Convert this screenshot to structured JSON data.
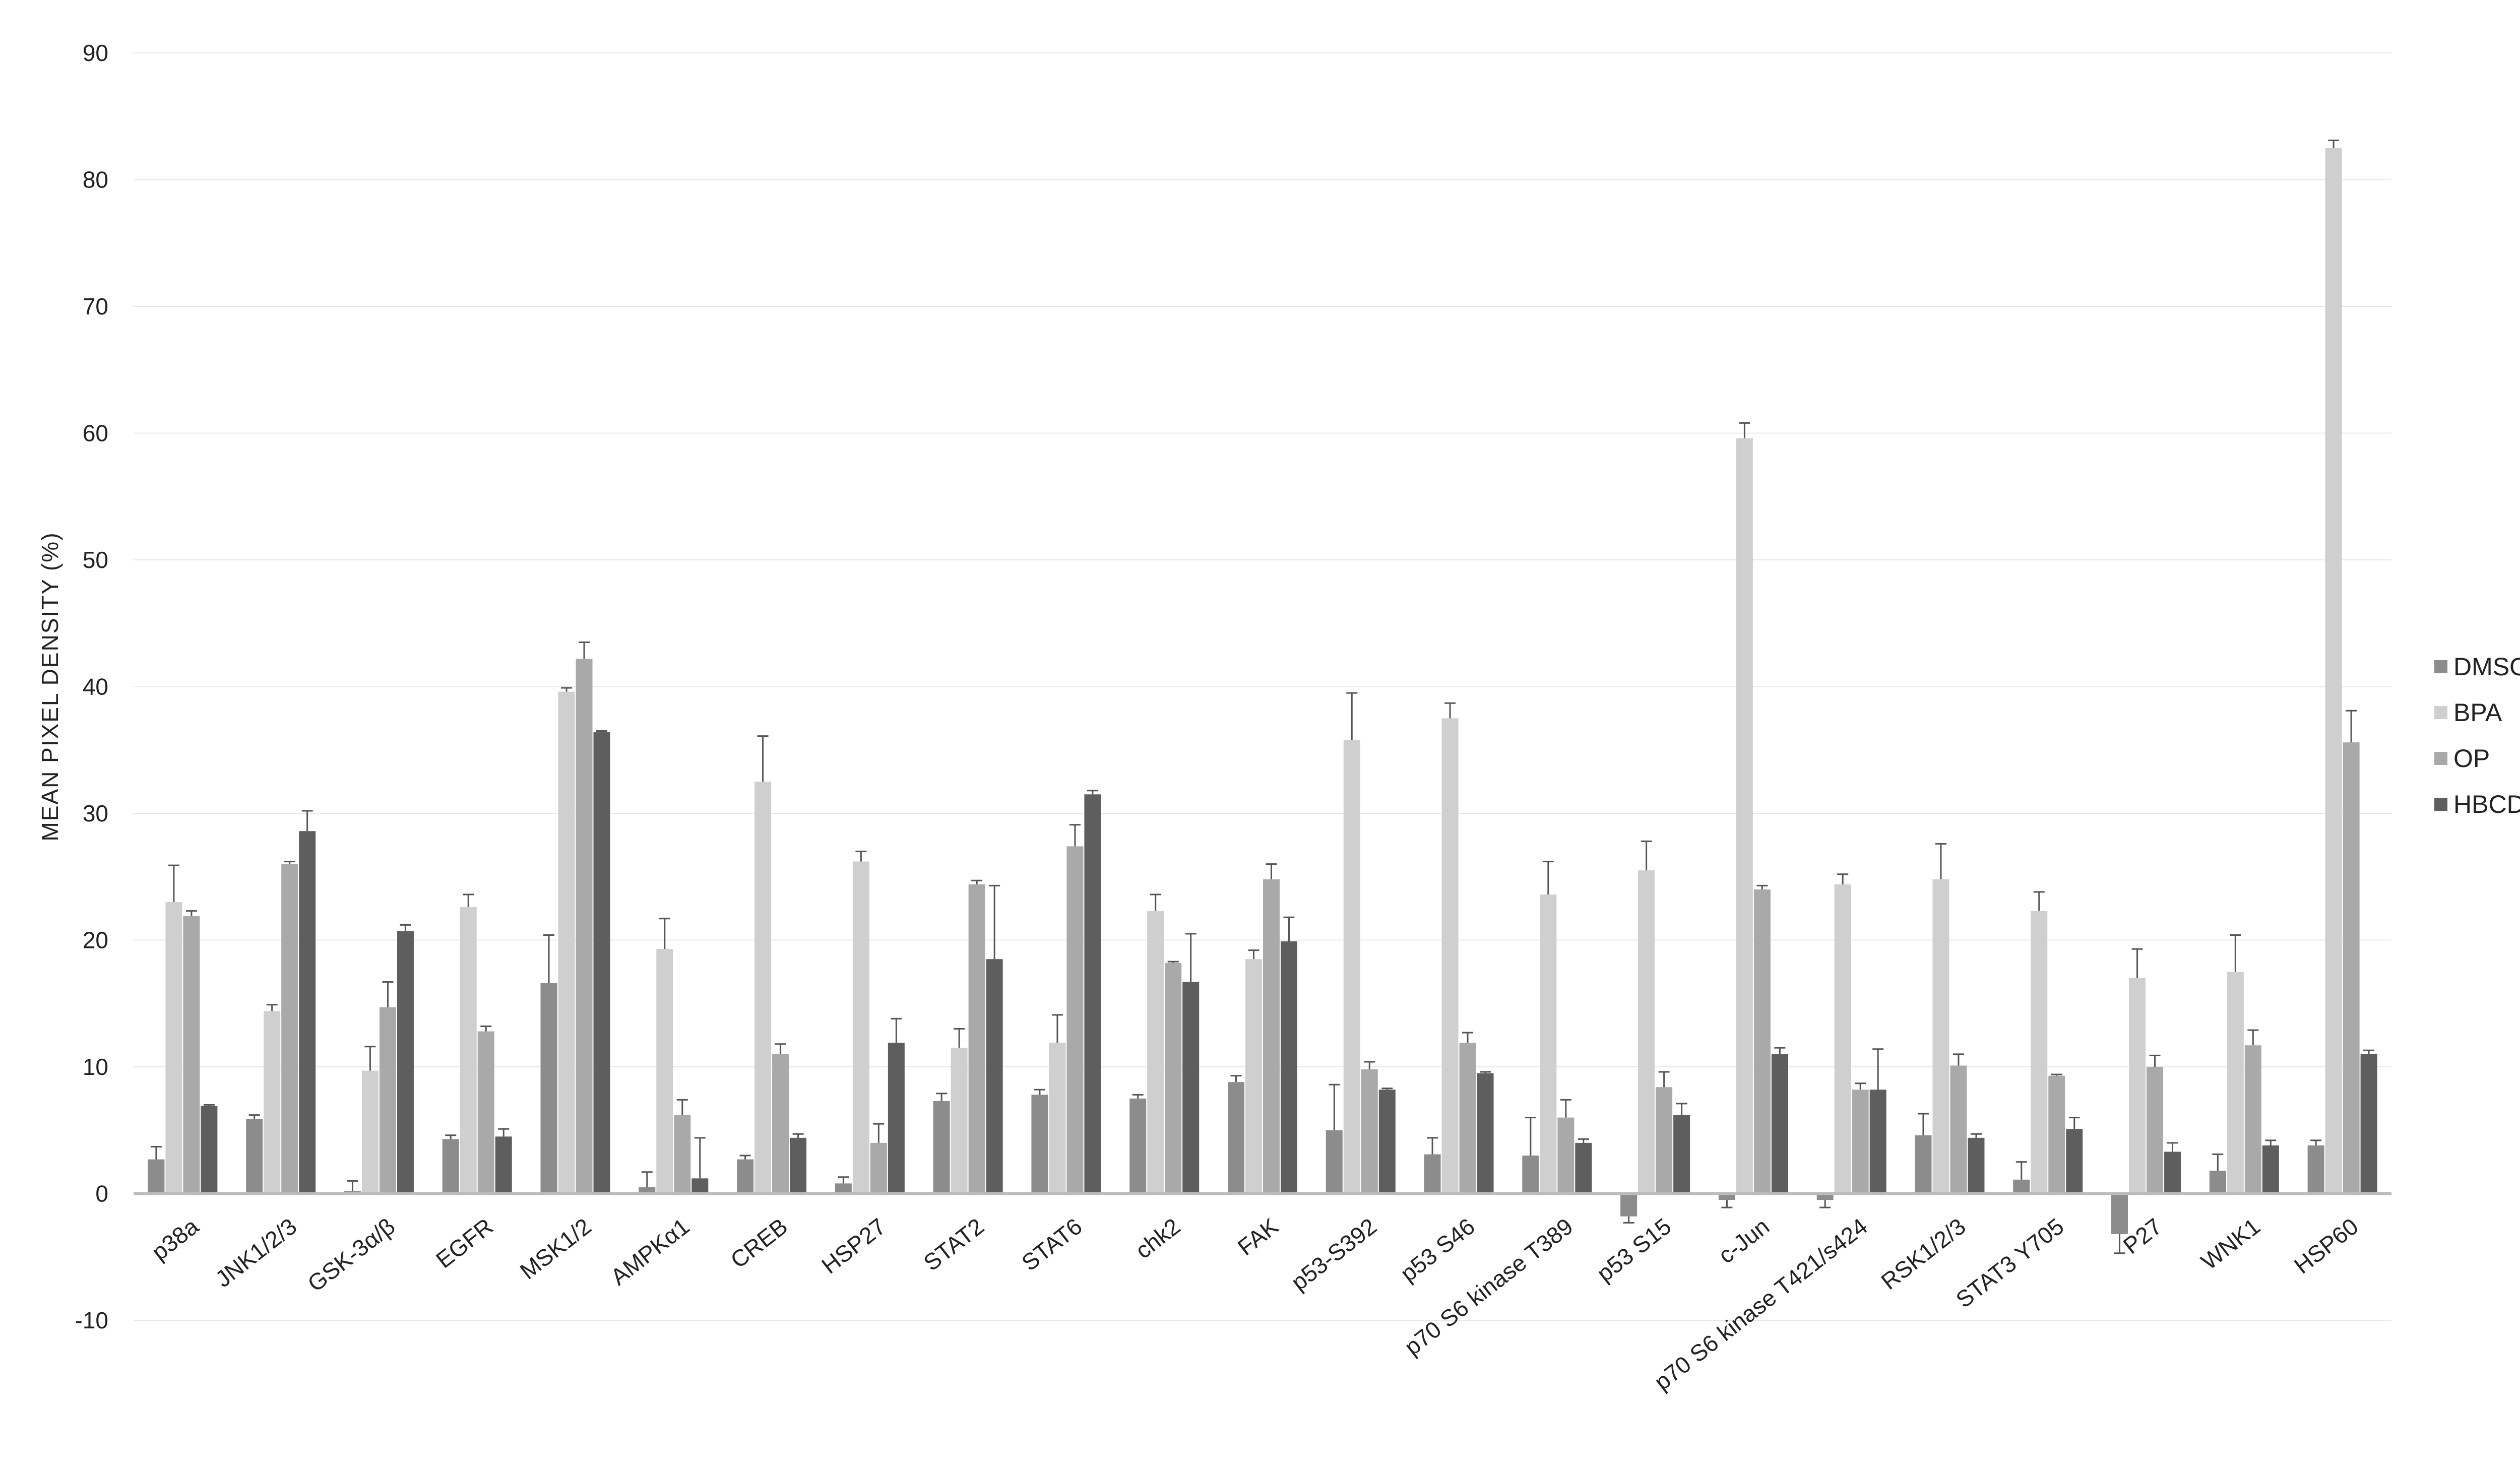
{
  "chart_data": {
    "type": "bar",
    "title": "",
    "xlabel": "",
    "ylabel": "MEAN  PIXEL DENSITY  (%)",
    "ylim": [
      -10,
      90
    ],
    "yticks": [
      -10,
      0,
      10,
      20,
      30,
      40,
      50,
      60,
      70,
      80,
      90
    ],
    "grid": true,
    "legend_position": "right",
    "categories": [
      "p38a",
      "JNK1/2/3",
      "GSK-3α/β",
      "EGFR",
      "MSK1/2",
      "AMPKα1",
      "CREB",
      "HSP27",
      "STAT2",
      "STAT6",
      "chk2",
      "FAK",
      "p53-S392",
      "p53  S46",
      "p70  S6 kinase  T389",
      "p53  S15",
      "c-Jun",
      "p70  S6 kinase  T421/s424",
      "RSK1/2/3",
      "STAT3  Y705",
      "P27",
      "WNK1",
      "HSP60"
    ],
    "series": [
      {
        "name": "DMSO",
        "color": "#8c8c8c",
        "values": [
          2.7,
          5.9,
          0.2,
          4.3,
          16.6,
          0.5,
          2.7,
          0.8,
          7.3,
          7.8,
          7.5,
          8.8,
          5.0,
          3.1,
          3.0,
          -1.8,
          -0.5,
          -0.5,
          4.6,
          1.1,
          -3.2,
          1.8,
          3.8
        ],
        "errors": [
          1.0,
          0.3,
          0.8,
          0.3,
          3.8,
          1.2,
          0.3,
          0.5,
          0.6,
          0.4,
          0.3,
          0.5,
          3.6,
          1.3,
          3.0,
          0.5,
          0.6,
          0.6,
          1.7,
          1.4,
          1.5,
          1.3,
          0.4
        ]
      },
      {
        "name": "BPA",
        "color": "#cfcfcf",
        "values": [
          23.0,
          14.4,
          9.7,
          22.6,
          39.6,
          19.3,
          32.5,
          26.2,
          11.5,
          11.9,
          22.3,
          18.5,
          35.8,
          37.5,
          23.6,
          25.5,
          59.6,
          24.4,
          24.8,
          22.3,
          17.0,
          17.5,
          82.5
        ],
        "errors": [
          2.9,
          0.5,
          1.9,
          1.0,
          0.3,
          2.4,
          3.6,
          0.8,
          1.5,
          2.2,
          1.3,
          0.7,
          3.7,
          1.2,
          2.6,
          2.3,
          1.2,
          0.8,
          2.8,
          1.5,
          2.3,
          2.9,
          0.6
        ]
      },
      {
        "name": "OP",
        "color": "#a9a9a9",
        "values": [
          21.9,
          26.0,
          14.7,
          12.8,
          42.2,
          6.2,
          11.0,
          4.0,
          24.4,
          27.4,
          18.2,
          24.8,
          9.8,
          11.9,
          6.0,
          8.4,
          24.0,
          8.2,
          10.1,
          9.3,
          10.0,
          11.7,
          35.6
        ],
        "errors": [
          0.4,
          0.2,
          2.0,
          0.4,
          1.3,
          1.2,
          0.8,
          1.5,
          0.3,
          1.7,
          0.1,
          1.2,
          0.6,
          0.8,
          1.4,
          1.2,
          0.3,
          0.5,
          0.9,
          0.1,
          0.9,
          1.2,
          2.5
        ]
      },
      {
        "name": "HBCD",
        "color": "#5e5e5e",
        "values": [
          6.9,
          28.6,
          20.7,
          4.5,
          36.4,
          1.2,
          4.4,
          11.9,
          18.5,
          31.5,
          16.7,
          19.9,
          8.2,
          9.5,
          4.0,
          6.2,
          11.0,
          8.2,
          4.4,
          5.1,
          3.3,
          3.8,
          11.0
        ],
        "errors": [
          0.1,
          1.6,
          0.5,
          0.6,
          0.1,
          3.2,
          0.3,
          1.9,
          5.8,
          0.3,
          3.8,
          1.9,
          0.1,
          0.1,
          0.3,
          0.9,
          0.5,
          3.2,
          0.3,
          0.9,
          0.7,
          0.4,
          0.3
        ]
      }
    ]
  }
}
